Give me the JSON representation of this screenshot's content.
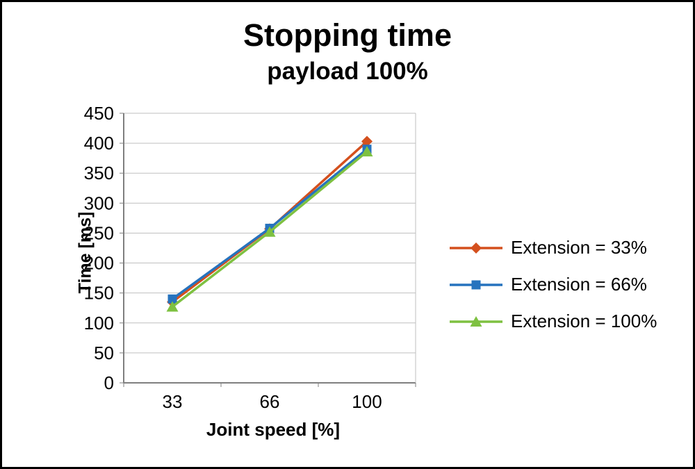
{
  "chart_data": {
    "type": "line",
    "title": "Stopping time",
    "subtitle": "payload 100%",
    "xlabel": "Joint speed [%]",
    "ylabel": "Time [ms]",
    "categories": [
      "33",
      "66",
      "100"
    ],
    "ylim": [
      0,
      450
    ],
    "ytick_step": 50,
    "grid": "horizontal",
    "legend_position": "right",
    "series": [
      {
        "name": "Extension = 33%",
        "marker": "diamond",
        "color": "#d4501e",
        "values": [
          135,
          257,
          403
        ]
      },
      {
        "name": "Extension = 66%",
        "marker": "square",
        "color": "#2673be",
        "values": [
          140,
          258,
          390
        ]
      },
      {
        "name": "Extension = 100%",
        "marker": "triangle",
        "color": "#7ec141",
        "values": [
          127,
          252,
          386
        ]
      }
    ],
    "colors": {
      "gridline": "#bfbfbf",
      "axis": "#7f7f7f",
      "text": "#000000",
      "background": "#ffffff"
    }
  }
}
